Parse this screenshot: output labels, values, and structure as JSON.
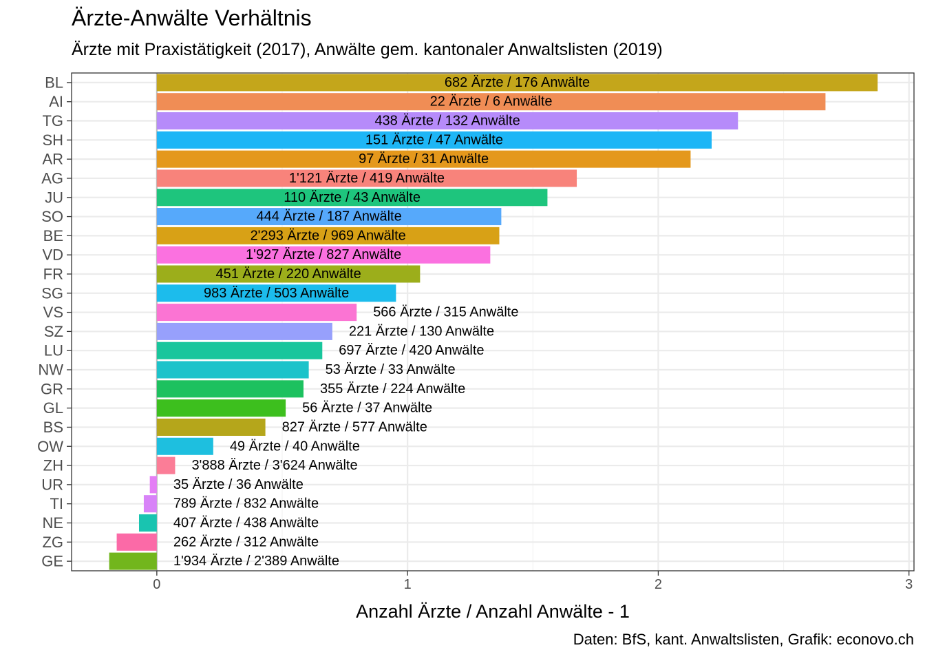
{
  "chart_data": {
    "type": "bar",
    "orientation": "horizontal",
    "title": "Ärzte-Anwälte Verhältnis",
    "subtitle": "Ärzte mit Praxistätigkeit (2017), Anwälte gem. kantonaler Anwaltslisten (2019)",
    "xlabel": "Anzahl Ärzte / Anzahl Anwälte - 1",
    "ylabel": "",
    "caption": "Daten: BfS, kant. Anwaltslisten, Grafik: econovo.ch",
    "xlim": [
      -0.34,
      3.02
    ],
    "x_ticks": [
      0,
      1,
      2,
      3
    ],
    "grid": true,
    "legend": "none",
    "bars": [
      {
        "category": "BL",
        "value": 2.875,
        "label": "682 Ärzte / 176 Anwälte",
        "color": "#c4a61b"
      },
      {
        "category": "AI",
        "value": 2.667,
        "label": "22 Ärzte / 6 Anwälte",
        "color": "#f08d55"
      },
      {
        "category": "TG",
        "value": 2.318,
        "label": "438 Ärzte / 132 Anwälte",
        "color": "#b68bfa"
      },
      {
        "category": "SH",
        "value": 2.213,
        "label": "151 Ärzte / 47 Anwälte",
        "color": "#1eb6f6"
      },
      {
        "category": "AR",
        "value": 2.129,
        "label": "97 Ärzte / 31 Anwälte",
        "color": "#e4981c"
      },
      {
        "category": "AG",
        "value": 1.675,
        "label": "1'121 Ärzte / 419 Anwälte",
        "color": "#f8837b"
      },
      {
        "category": "JU",
        "value": 1.558,
        "label": "110 Ärzte / 43 Anwälte",
        "color": "#1ec57d"
      },
      {
        "category": "SO",
        "value": 1.374,
        "label": "444 Ärzte / 187 Anwälte",
        "color": "#56a9fb"
      },
      {
        "category": "BE",
        "value": 1.366,
        "label": "2'293 Ärzte / 969 Anwälte",
        "color": "#d8a116"
      },
      {
        "category": "VD",
        "value": 1.33,
        "label": "1'927 Ärzte / 827 Anwälte",
        "color": "#fb71e0"
      },
      {
        "category": "FR",
        "value": 1.05,
        "label": "451 Ärzte / 220 Anwälte",
        "color": "#9cae1b"
      },
      {
        "category": "SG",
        "value": 0.954,
        "label": "983 Ärzte / 503 Anwälte",
        "color": "#1cbcec"
      },
      {
        "category": "VS",
        "value": 0.797,
        "label": "566 Ärzte / 315 Anwälte",
        "color": "#fb74d3"
      },
      {
        "category": "SZ",
        "value": 0.7,
        "label": "221 Ärzte / 130 Anwälte",
        "color": "#97a0fc"
      },
      {
        "category": "LU",
        "value": 0.66,
        "label": "697 Ärzte / 420 Anwälte",
        "color": "#18c69c"
      },
      {
        "category": "NW",
        "value": 0.606,
        "label": "53 Ärzte / 33 Anwälte",
        "color": "#1cc3ca"
      },
      {
        "category": "GR",
        "value": 0.585,
        "label": "355 Ärzte / 224 Anwälte",
        "color": "#1dc15f"
      },
      {
        "category": "GL",
        "value": 0.514,
        "label": "56 Ärzte / 37 Anwälte",
        "color": "#3dbf1e"
      },
      {
        "category": "BS",
        "value": 0.433,
        "label": "827 Ärzte / 577 Anwälte",
        "color": "#b5a61b"
      },
      {
        "category": "OW",
        "value": 0.225,
        "label": "49 Ärzte / 40 Anwälte",
        "color": "#1ebfdf"
      },
      {
        "category": "ZH",
        "value": 0.073,
        "label": "3'888 Ärzte / 3'624 Anwälte",
        "color": "#fb7d97"
      },
      {
        "category": "UR",
        "value": -0.028,
        "label": "35 Ärzte / 36 Anwälte",
        "color": "#e47ef5"
      },
      {
        "category": "TI",
        "value": -0.052,
        "label": "789 Ärzte / 832 Anwälte",
        "color": "#d883f8"
      },
      {
        "category": "NE",
        "value": -0.071,
        "label": "407 Ärzte / 438 Anwälte",
        "color": "#19c4b0"
      },
      {
        "category": "ZG",
        "value": -0.16,
        "label": "262 Ärzte / 312 Anwälte",
        "color": "#fb6aa7"
      },
      {
        "category": "GE",
        "value": -0.19,
        "label": "1'934 Ärzte / 2'389 Anwälte",
        "color": "#72b61d"
      }
    ]
  }
}
